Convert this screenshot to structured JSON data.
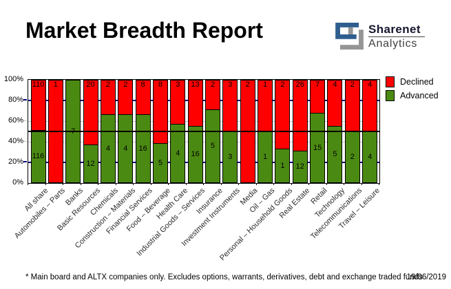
{
  "header": {
    "title": "Market Breadth Report",
    "logo": {
      "line1": "Sharenet",
      "line2": "Analytics",
      "blue": "#2e5e8e",
      "gray": "#959595"
    }
  },
  "legend": [
    {
      "label": "Declined",
      "color": "#ff0000"
    },
    {
      "label": "Advanced",
      "color": "#4b8a12"
    }
  ],
  "footer": {
    "note": "* Main board and ALTX companies only. Excludes options, warrants, derivatives, debt and exchange traded funds",
    "date": "19/06/2019"
  },
  "chart_data": {
    "type": "bar",
    "stacked": true,
    "stack_mode": "percent",
    "title": "Market Breadth Report",
    "categories": [
      "All share",
      "Automobiles – Parts",
      "Banks",
      "Basic Resources",
      "Chemicals",
      "Construction – Materials",
      "Financial Services",
      "Food – Beverage",
      "Health Care",
      "Industrial Goods – Services",
      "Insurance",
      "Investment Instruments",
      "Media",
      "Oil – Gas",
      "Personal – Household Goods",
      "Real Estate",
      "Retail",
      "Technology",
      "Telecommunications",
      "Travel – Leisure"
    ],
    "series": [
      {
        "name": "Declined",
        "color": "#ff0000",
        "values": [
          110,
          1,
          0,
          20,
          2,
          2,
          8,
          8,
          3,
          13,
          2,
          3,
          2,
          1,
          2,
          26,
          7,
          4,
          2,
          4
        ]
      },
      {
        "name": "Advanced",
        "color": "#4b8a12",
        "values": [
          116,
          0,
          7,
          12,
          4,
          4,
          16,
          5,
          4,
          16,
          5,
          3,
          0,
          1,
          1,
          12,
          15,
          5,
          2,
          4
        ]
      }
    ],
    "ylabel": "",
    "xlabel": "",
    "ylim": [
      0,
      100
    ],
    "y_ticks": [
      "0%",
      "20%",
      "40%",
      "60%",
      "80%",
      "100%"
    ],
    "reference_line_pct": 50,
    "gridlines": {
      "navy_pcts": [
        20,
        80
      ],
      "gray_pcts": [
        40,
        60
      ],
      "navy_color": "#000080",
      "gray_color": "#c0c0c0"
    },
    "legend_position": "top-right"
  }
}
